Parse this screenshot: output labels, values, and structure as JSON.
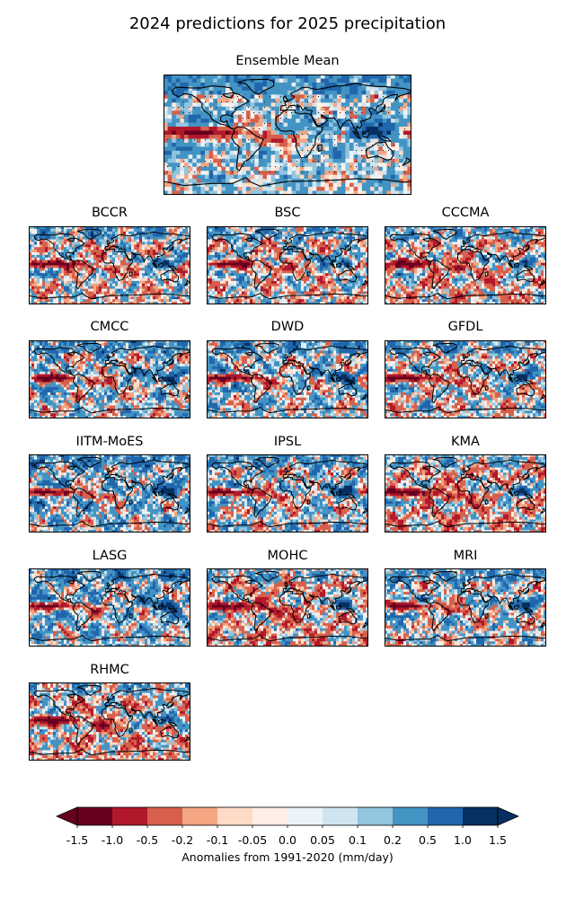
{
  "figure": {
    "title": "2024 predictions for 2025 precipitation"
  },
  "ensemble": {
    "title": "Ensemble Mean"
  },
  "models": [
    "BCCR",
    "BSC",
    "CCCMA",
    "CMCC",
    "DWD",
    "GFDL",
    "IITM-MoES",
    "IPSL",
    "KMA",
    "LASG",
    "MOHC",
    "MRI",
    "RHMC"
  ],
  "colorbar": {
    "label": "Anomalies from 1991-2020 (mm/day)",
    "ticks": [
      "-1.5",
      "-1.0",
      "-0.5",
      "-0.2",
      "-0.1",
      "-0.05",
      "0.0",
      "0.05",
      "0.1",
      "0.2",
      "0.5",
      "1.0",
      "1.5"
    ],
    "colors": [
      "#67001f",
      "#b2182b",
      "#d6604d",
      "#f4a582",
      "#fddbc7",
      "#fdeee6",
      "#eaf3f8",
      "#d1e5f0",
      "#92c5de",
      "#4393c3",
      "#2166ac",
      "#053061"
    ],
    "colormap": "RdBu",
    "extend": "both"
  }
}
